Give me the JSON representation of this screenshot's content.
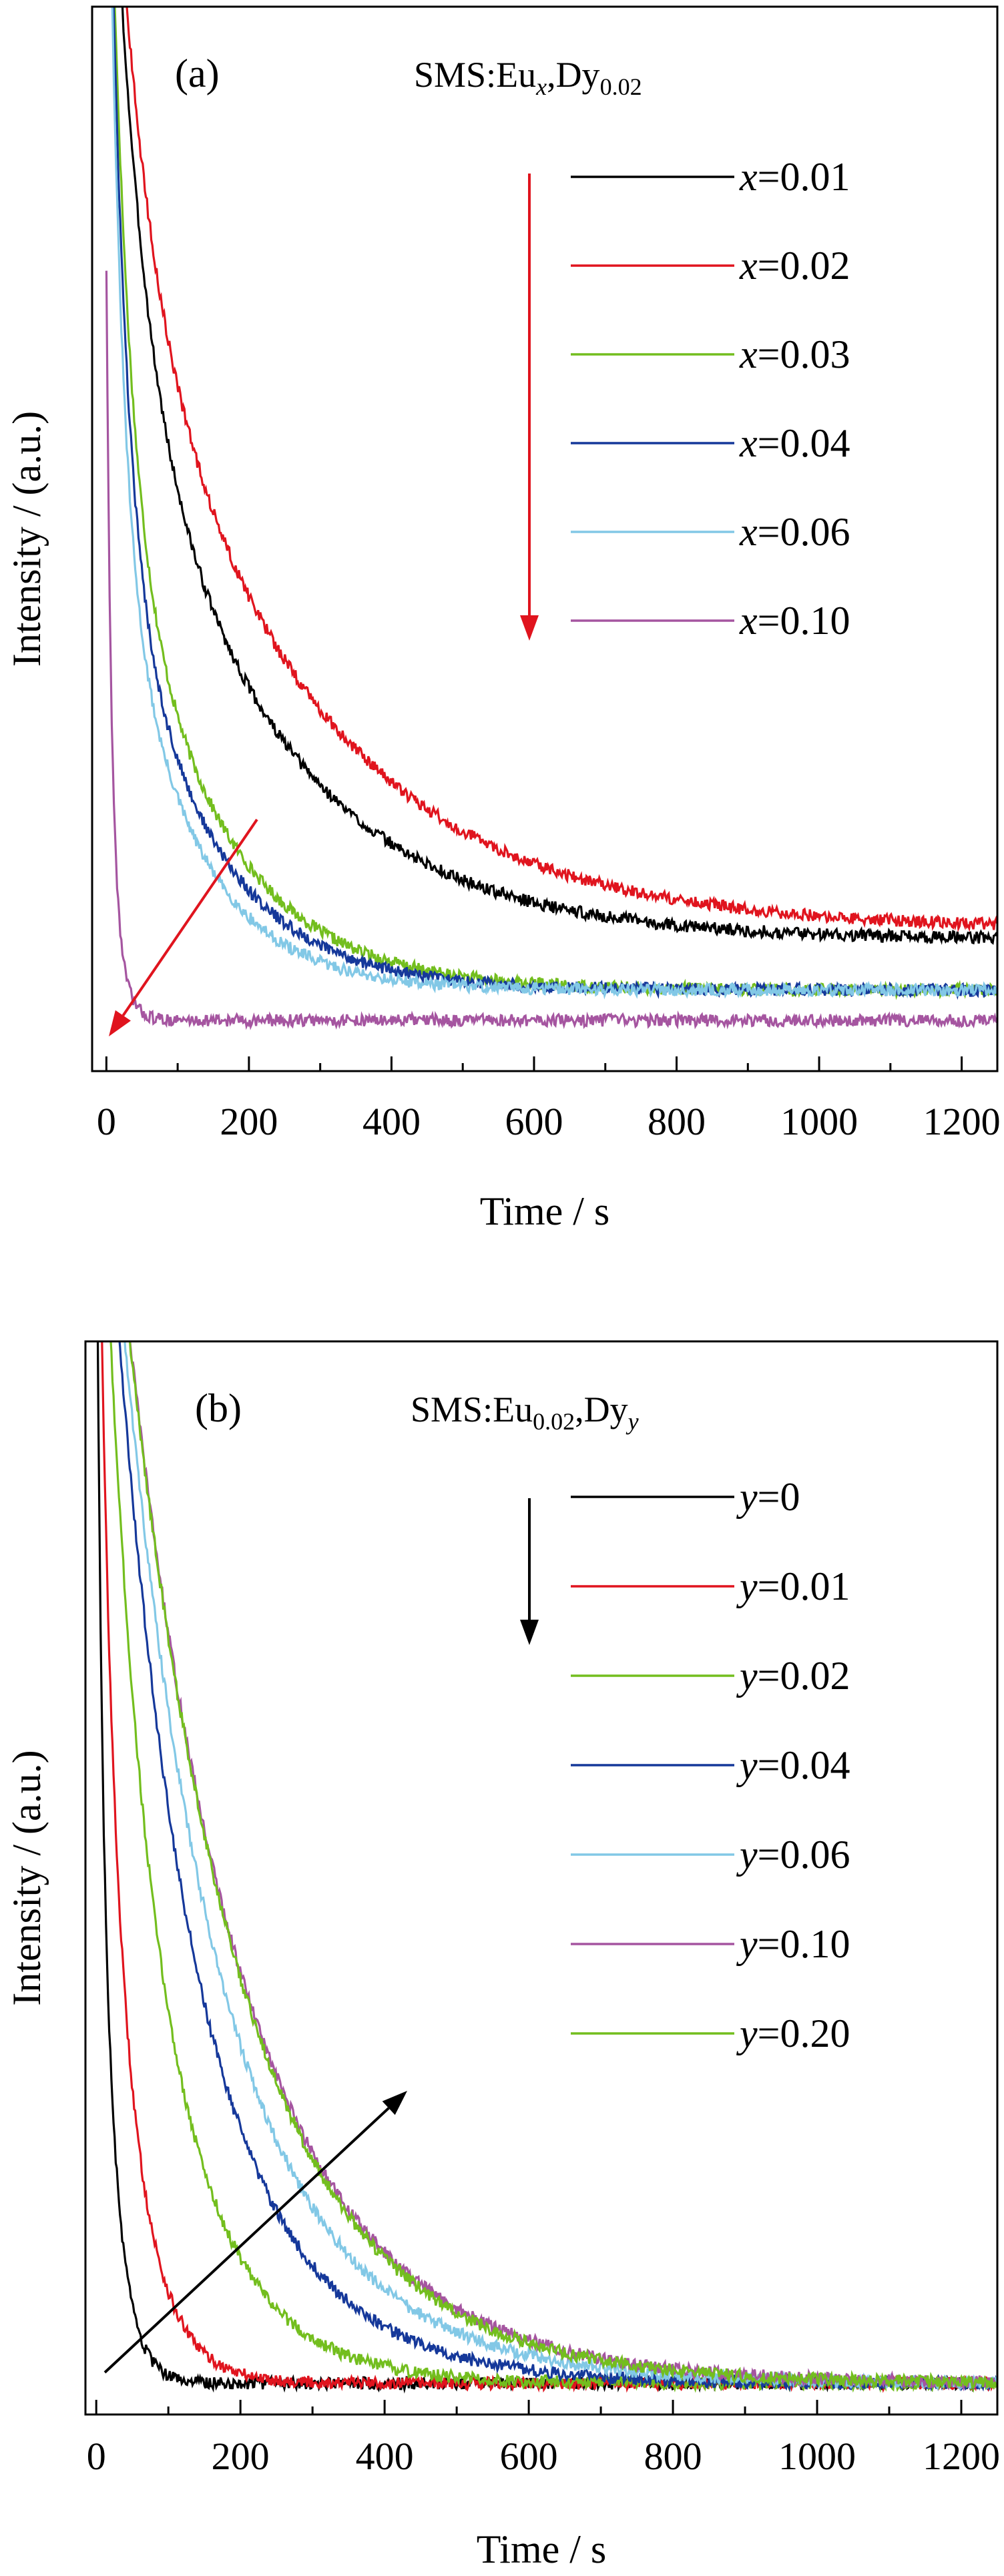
{
  "chart_data": [
    {
      "type": "line",
      "panel_label": "(a)",
      "composition": {
        "base": "SMS:Eu",
        "var": "x",
        "mid": ",Dy",
        "sub": "0.02"
      },
      "xlabel": "Time / s",
      "ylabel": "Intensity / (a.u.)",
      "xlim": [
        -20,
        1250
      ],
      "ylim": [
        -0.05,
        1.0
      ],
      "xticks": [
        0,
        200,
        400,
        600,
        800,
        1000,
        1200
      ],
      "grid": false,
      "legend_position": "top-right",
      "series": [
        {
          "name": "x=0.01",
          "var": "x",
          "val": "=0.01",
          "color": "#000000",
          "b": 0.08,
          "A": 0.92,
          "t0": 18,
          "tau1": 40,
          "tau2": 210,
          "w": 0.58
        },
        {
          "name": "x=0.02",
          "var": "x",
          "val": "=0.02",
          "color": "#e0141e",
          "b": 0.09,
          "A": 0.91,
          "t0": 23,
          "tau1": 45,
          "tau2": 250,
          "w": 0.52
        },
        {
          "name": "x=0.03",
          "var": "x",
          "val": "=0.03",
          "color": "#73be1e",
          "b": 0.03,
          "A": 0.97,
          "t0": 12,
          "tau1": 25,
          "tau2": 135,
          "w": 0.68
        },
        {
          "name": "x=0.04",
          "var": "x",
          "val": "=0.04",
          "color": "#15389a",
          "b": 0.03,
          "A": 0.97,
          "t0": 10,
          "tau1": 22,
          "tau2": 125,
          "w": 0.71
        },
        {
          "name": "x=0.06",
          "var": "x",
          "val": "=0.06",
          "color": "#82c8e6",
          "b": 0.03,
          "A": 0.97,
          "t0": 10,
          "tau1": 18,
          "tau2": 105,
          "w": 0.73
        },
        {
          "name": "x=0.10",
          "var": "x",
          "val": "=0.10",
          "color": "#a555a0",
          "b": 0.0,
          "A": 0.55,
          "t0": 4,
          "tau1": 6,
          "tau2": 14,
          "w": 0.7
        }
      ],
      "trend_arrow_direction": "down",
      "trend_arrow_color": "#e0141e"
    },
    {
      "type": "line",
      "panel_label": "(b)",
      "composition": {
        "base": "SMS:Eu",
        "sub": "0.02",
        "mid": ",Dy",
        "var": "y"
      },
      "xlabel": "Time / s",
      "ylabel": "Intensity / (a.u.)",
      "xlim": [
        -15,
        1250
      ],
      "ylim": [
        -0.03,
        1.0
      ],
      "xticks": [
        0,
        200,
        400,
        600,
        800,
        1000,
        1200
      ],
      "grid": false,
      "legend_position": "top-right",
      "series": [
        {
          "name": "y=0",
          "var": "y",
          "val": "=0",
          "color": "#000000",
          "b": 0.0,
          "A": 0.9,
          "t0": 3,
          "tau1": 6,
          "tau2": 22,
          "w": 0.5
        },
        {
          "name": "y=0.01",
          "var": "y",
          "val": "=0.01",
          "color": "#e0141e",
          "b": 0.0,
          "A": 1.0,
          "t0": 18,
          "tau1": 15,
          "tau2": 45,
          "w": 0.6
        },
        {
          "name": "y=0.02",
          "var": "y",
          "val": "=0.02",
          "color": "#73be1e",
          "b": 0.0,
          "A": 1.0,
          "t0": 25,
          "tau1": 40,
          "tau2": 100,
          "w": 0.45
        },
        {
          "name": "y=0.04",
          "var": "y",
          "val": "=0.04",
          "color": "#15389a",
          "b": 0.0,
          "A": 1.0,
          "t0": 48,
          "tau1": 70,
          "tau2": 140,
          "w": 0.4
        },
        {
          "name": "y=0.06",
          "var": "y",
          "val": "=0.06",
          "color": "#82c8e6",
          "b": 0.0,
          "A": 1.0,
          "t0": 50,
          "tau1": 90,
          "tau2": 170,
          "w": 0.4
        },
        {
          "name": "y=0.10",
          "var": "y",
          "val": "=0.10",
          "color": "#a555a0",
          "b": 0.0,
          "A": 1.0,
          "t0": 80,
          "tau1": 100,
          "tau2": 185,
          "w": 0.3
        },
        {
          "name": "y=0.20",
          "var": "y",
          "val": "=0.20",
          "color": "#73be1e",
          "b": 0.0,
          "A": 1.0,
          "t0": 105,
          "tau1": 100,
          "tau2": 180,
          "w": 0.3
        }
      ],
      "trend_arrow_direction": "down",
      "trend_arrow_color": "#000000"
    }
  ]
}
